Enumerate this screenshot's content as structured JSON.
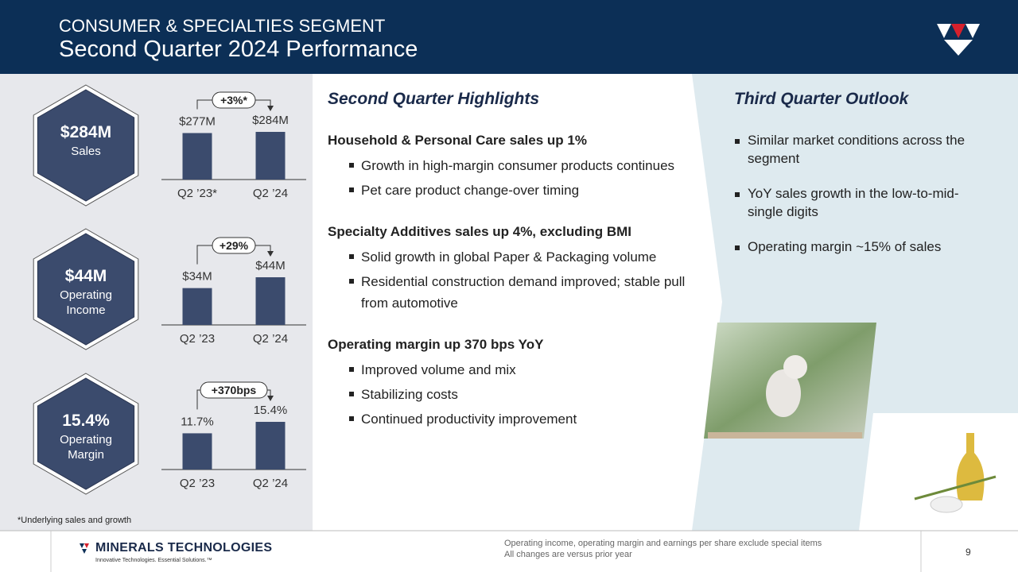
{
  "header": {
    "section": "CONSUMER & SPECIALTIES SEGMENT",
    "title": "Second Quarter 2024 Performance"
  },
  "kpis": [
    {
      "value": "$284M",
      "label": "Sales"
    },
    {
      "value": "$44M",
      "label": "Operating Income"
    },
    {
      "value": "15.4%",
      "label": "Operating Margin"
    }
  ],
  "chart_data": [
    {
      "type": "bar",
      "categories": [
        "Q2 ’23*",
        "Q2 ’24"
      ],
      "values": [
        277,
        284
      ],
      "value_labels": [
        "$277M",
        "$284M"
      ],
      "annotation": "+3%*",
      "color": "#3b4b6d"
    },
    {
      "type": "bar",
      "categories": [
        "Q2 ’23",
        "Q2 ’24"
      ],
      "values": [
        34,
        44
      ],
      "value_labels": [
        "$34M",
        "$44M"
      ],
      "annotation": "+29%",
      "color": "#3b4b6d"
    },
    {
      "type": "bar",
      "categories": [
        "Q2 ’23",
        "Q2 ’24"
      ],
      "values": [
        11.7,
        15.4
      ],
      "value_labels": [
        "11.7%",
        "15.4%"
      ],
      "annotation": "+370bps",
      "color": "#3b4b6d"
    }
  ],
  "footnote": "*Underlying sales and growth",
  "highlights": {
    "title": "Second Quarter Highlights",
    "sections": [
      {
        "heading": "Household & Personal Care sales up 1%",
        "bullets": [
          "Growth in high-margin consumer products continues",
          "Pet care product change-over timing"
        ]
      },
      {
        "heading": "Specialty Additives sales up 4%, excluding BMI",
        "bullets": [
          "Solid growth in global Paper & Packaging volume",
          "Residential construction demand improved; stable pull from automotive"
        ]
      },
      {
        "heading": "Operating margin up 370 bps YoY",
        "bullets": [
          "Improved volume and mix",
          "Stabilizing costs",
          "Continued productivity improvement"
        ]
      }
    ]
  },
  "outlook": {
    "title": "Third Quarter Outlook",
    "bullets": [
      "Similar market conditions across the segment",
      "YoY sales growth in the low-to-mid-single digits",
      "Operating margin ~15% of sales"
    ]
  },
  "footer": {
    "company": "MINERALS TECHNOLOGIES",
    "tagline": "Innovative Technologies. Essential Solutions.™",
    "notes": [
      "Operating income, operating margin and earnings per share exclude special items",
      "All changes are versus prior year"
    ],
    "page": 9
  }
}
